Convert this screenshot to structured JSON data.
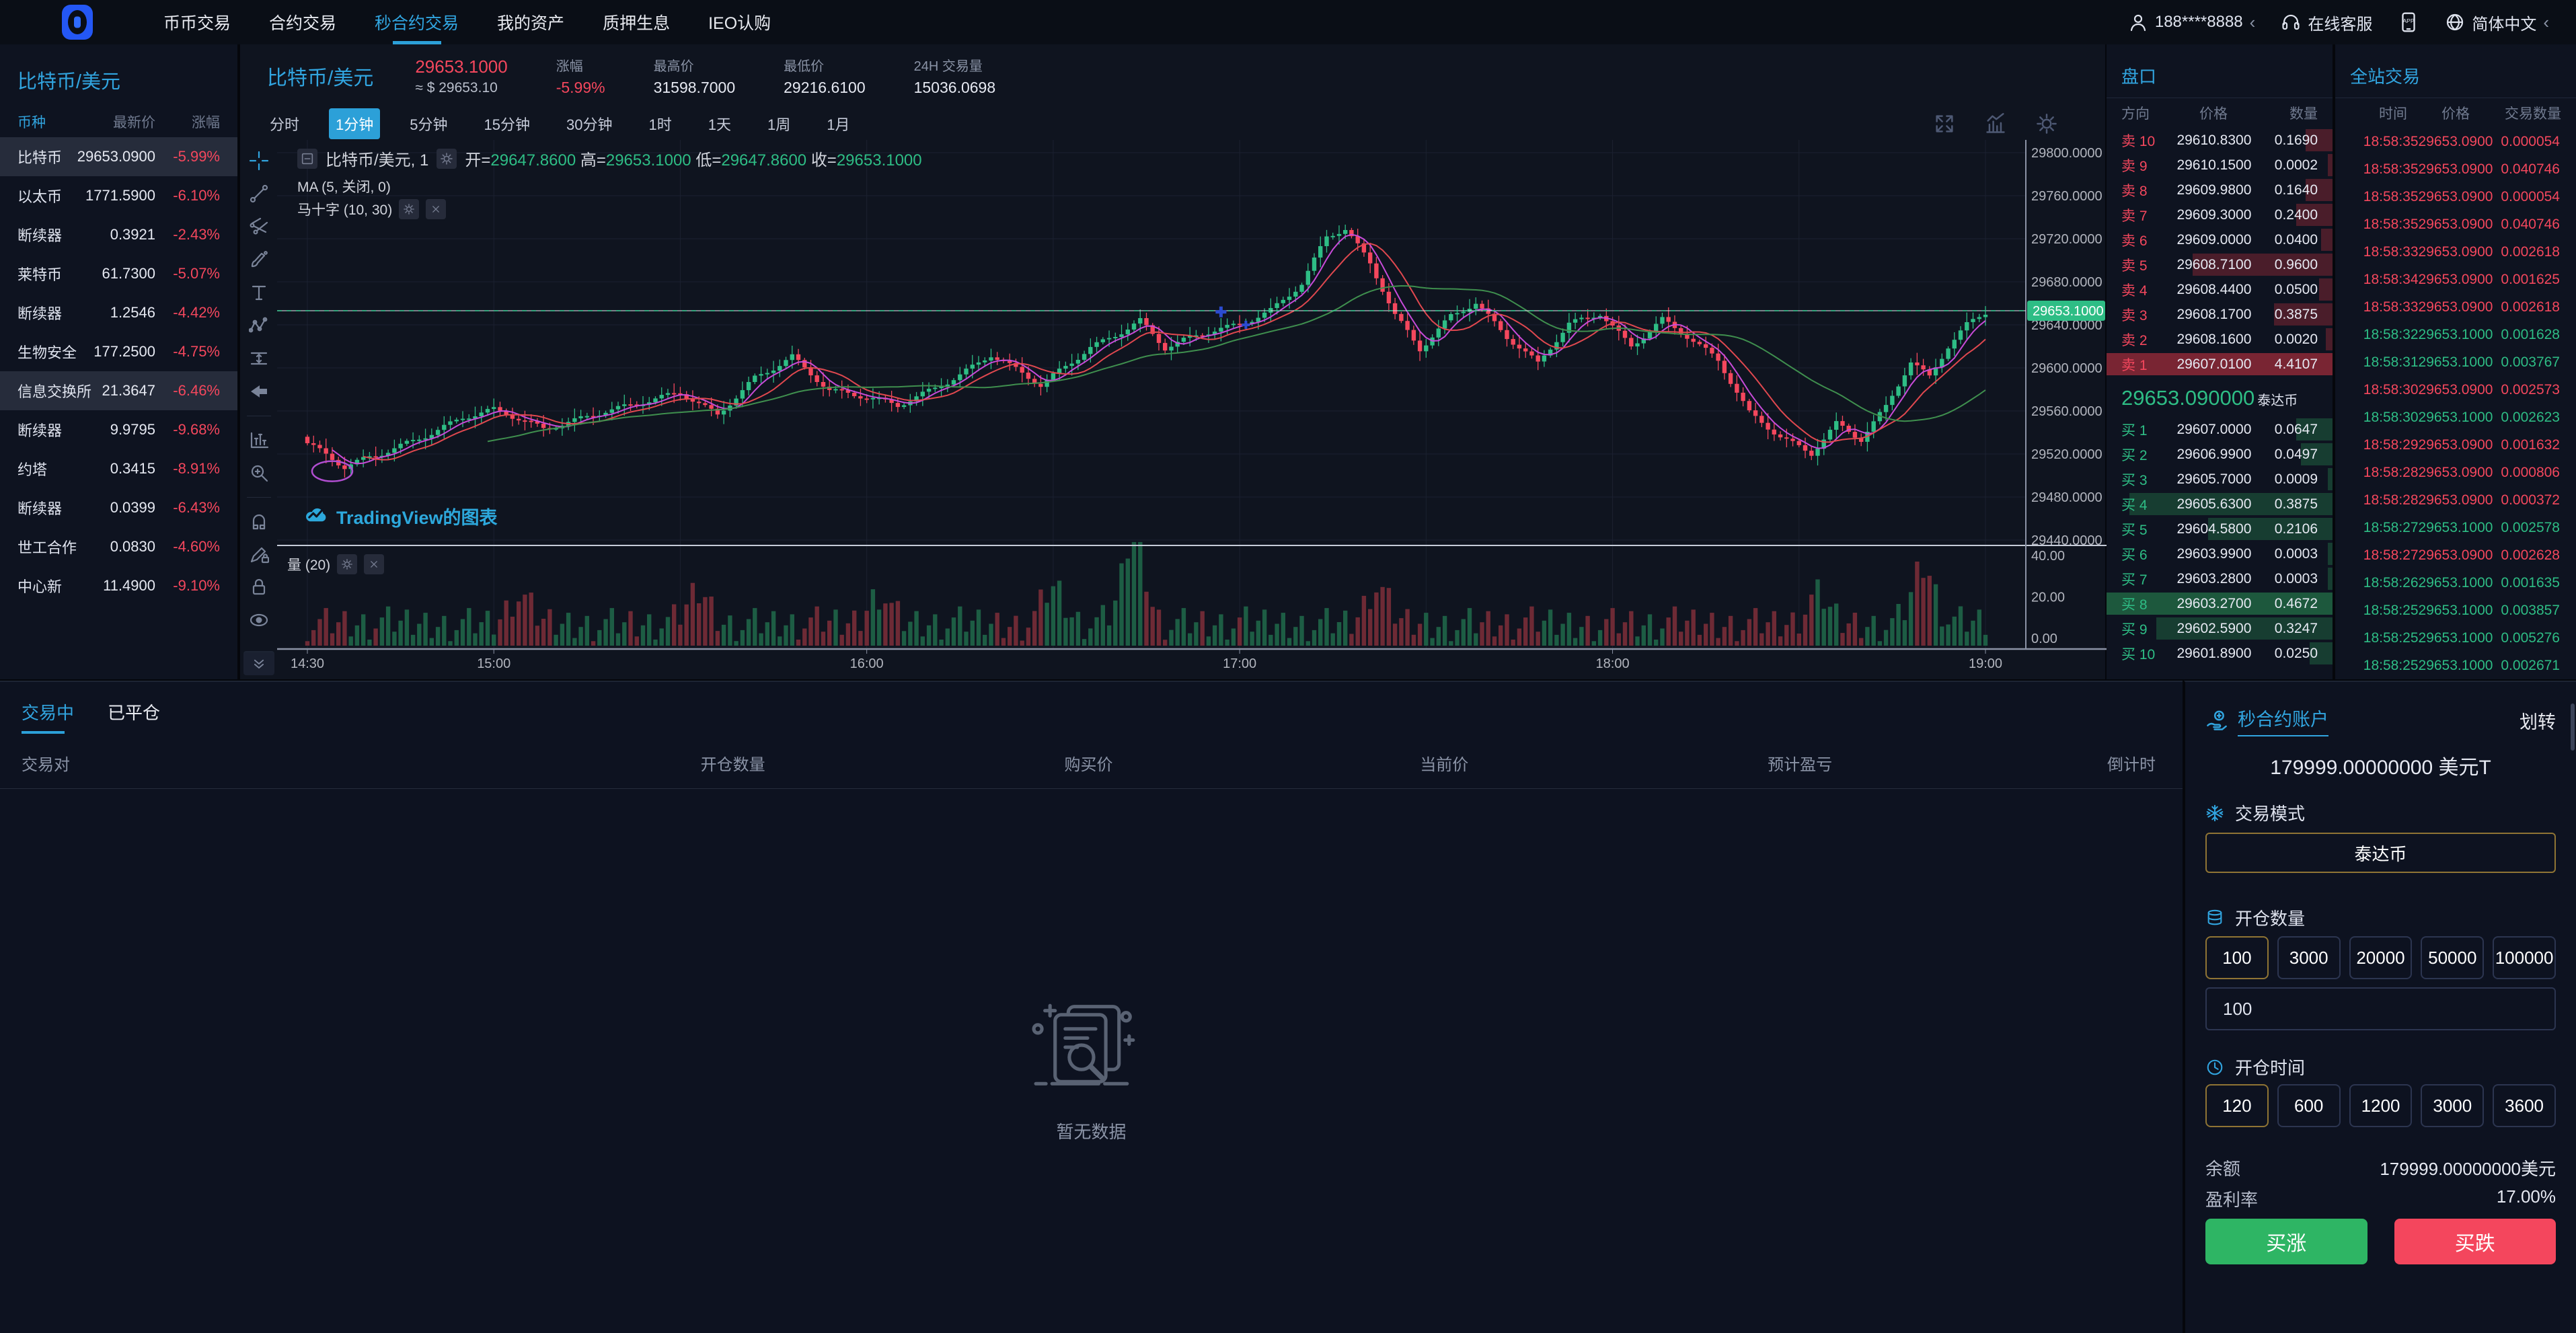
{
  "colors": {
    "accent": "#31a5e0",
    "red": "#f4475d",
    "green": "#2ebd85",
    "gold": "#8f7434",
    "vol_up": "#1d5d44",
    "vol_down": "#6e2a35"
  },
  "nav": {
    "items": [
      {
        "label": "币币交易",
        "active": false
      },
      {
        "label": "合约交易",
        "active": false
      },
      {
        "label": "秒合约交易",
        "active": true
      },
      {
        "label": "我的资产",
        "active": false
      },
      {
        "label": "质押生息",
        "active": false
      },
      {
        "label": "IEO认购",
        "active": false
      }
    ],
    "user_phone": "188****8888",
    "support_label": "在线客服",
    "app_label": "APP",
    "language_label": "简体中文"
  },
  "watchlist": {
    "title": "比特币/美元",
    "columns": [
      "币种",
      "最新价",
      "涨幅"
    ],
    "rows": [
      {
        "name": "比特币",
        "price": "29653.0900",
        "change": "-5.99%",
        "highlight": true
      },
      {
        "name": "以太币",
        "price": "1771.5900",
        "change": "-6.10%",
        "highlight": false
      },
      {
        "name": "断续器",
        "price": "0.3921",
        "change": "-2.43%",
        "highlight": false
      },
      {
        "name": "莱特币",
        "price": "61.7300",
        "change": "-5.07%",
        "highlight": false
      },
      {
        "name": "断续器",
        "price": "1.2546",
        "change": "-4.42%",
        "highlight": false
      },
      {
        "name": "生物安全",
        "price": "177.2500",
        "change": "-4.75%",
        "highlight": false
      },
      {
        "name": "信息交换所",
        "price": "21.3647",
        "change": "-6.46%",
        "highlight": true
      },
      {
        "name": "断续器",
        "price": "9.9795",
        "change": "-9.68%",
        "highlight": false
      },
      {
        "name": "约塔",
        "price": "0.3415",
        "change": "-8.91%",
        "highlight": false
      },
      {
        "name": "断续器",
        "price": "0.0399",
        "change": "-6.43%",
        "highlight": false
      },
      {
        "name": "世工合作",
        "price": "0.0830",
        "change": "-4.60%",
        "highlight": false
      },
      {
        "name": "中心新",
        "price": "11.4900",
        "change": "-9.10%",
        "highlight": false
      }
    ]
  },
  "market_header": {
    "pair": "比特币/美元",
    "last_price": "29653.1000",
    "usd_approx": "≈ $ 29653.10",
    "change_label": "涨幅",
    "change_value": "-5.99%",
    "high_label": "最高价",
    "high_value": "31598.7000",
    "low_label": "最低价",
    "low_value": "29216.6100",
    "volume_label": "24H 交易量",
    "volume_value": "15036.0698"
  },
  "chart": {
    "timeframes": [
      "分时",
      "1分钟",
      "5分钟",
      "15分钟",
      "30分钟",
      "1时",
      "1天",
      "1周",
      "1月"
    ],
    "active_timeframe": "1分钟",
    "toolbar": [
      "crosshair",
      "trendline",
      "pitchfork",
      "brush",
      "text",
      "pattern",
      "range",
      "arrow-left",
      "divider",
      "forecast",
      "zoom-in",
      "divider",
      "magnet",
      "pencil-lock",
      "lock",
      "eye"
    ],
    "top_tools": [
      "fullscreen",
      "indicators",
      "gear"
    ],
    "legend": {
      "title": "比特币/美元, 1",
      "open_label": "开",
      "open": "29647.8600",
      "high_label": "高",
      "high": "29653.1000",
      "low_label": "低",
      "low": "29647.8600",
      "close_label": "收",
      "close": "29653.1000",
      "ma": "MA (5, 关闭, 0)",
      "indicator": "马十字 (10, 30)"
    },
    "attribution": "TradingView的图表",
    "volume_legend": "量 (20)",
    "chart_data": {
      "type": "candlestick+volume",
      "pair": "比特币/美元",
      "interval": "1分钟",
      "x_ticks": [
        "14:30",
        "15:00",
        "16:00",
        "17:00",
        "18:00",
        "19:00"
      ],
      "x_tick_minutes": [
        0,
        30,
        90,
        150,
        210,
        270
      ],
      "minutes_total": 270,
      "y_ticks": [
        "29800.0000",
        "29760.0000",
        "29720.0000",
        "29680.0000",
        "29640.0000",
        "29600.0000",
        "29560.0000",
        "29520.0000",
        "29480.0000",
        "29440.0000"
      ],
      "y_tick_values": [
        29800,
        29760,
        29720,
        29680,
        29640,
        29600,
        29560,
        29520,
        29480,
        29440
      ],
      "volume_ticks": [
        "40.00",
        "20.00",
        "0.00"
      ],
      "current_price": 29653.1,
      "current_price_label": "29653.1000",
      "price_anchors": [
        [
          0,
          29530
        ],
        [
          6,
          29506
        ],
        [
          12,
          29520
        ],
        [
          25,
          29555
        ],
        [
          30,
          29560
        ],
        [
          38,
          29542
        ],
        [
          48,
          29562
        ],
        [
          60,
          29575
        ],
        [
          66,
          29555
        ],
        [
          72,
          29592
        ],
        [
          78,
          29612
        ],
        [
          84,
          29578
        ],
        [
          95,
          29565
        ],
        [
          105,
          29595
        ],
        [
          110,
          29612
        ],
        [
          118,
          29582
        ],
        [
          126,
          29620
        ],
        [
          134,
          29645
        ],
        [
          138,
          29618
        ],
        [
          144,
          29630
        ],
        [
          150,
          29640
        ],
        [
          155,
          29655
        ],
        [
          160,
          29680
        ],
        [
          164,
          29722
        ],
        [
          167,
          29728
        ],
        [
          171,
          29695
        ],
        [
          175,
          29648
        ],
        [
          179,
          29618
        ],
        [
          184,
          29650
        ],
        [
          188,
          29662
        ],
        [
          193,
          29628
        ],
        [
          198,
          29602
        ],
        [
          203,
          29640
        ],
        [
          208,
          29652
        ],
        [
          213,
          29622
        ],
        [
          218,
          29645
        ],
        [
          222,
          29628
        ],
        [
          227,
          29605
        ],
        [
          232,
          29558
        ],
        [
          237,
          29538
        ],
        [
          242,
          29522
        ],
        [
          246,
          29548
        ],
        [
          250,
          29532
        ],
        [
          254,
          29562
        ],
        [
          258,
          29605
        ],
        [
          261,
          29592
        ],
        [
          264,
          29622
        ],
        [
          267,
          29642
        ],
        [
          270,
          29653
        ]
      ],
      "volume_spikes": [
        [
          34,
          12
        ],
        [
          63,
          14
        ],
        [
          92,
          14
        ],
        [
          120,
          16
        ],
        [
          133,
          40
        ],
        [
          172,
          16
        ],
        [
          243,
          12
        ],
        [
          260,
          26
        ]
      ],
      "ma_periods": [
        5,
        10,
        30
      ]
    }
  },
  "orderbook": {
    "title": "盘口",
    "columns": [
      "方向",
      "价格",
      "数量"
    ],
    "asks": [
      {
        "label": "卖 10",
        "price": "29610.8300",
        "qty": "0.1690",
        "depth": 12
      },
      {
        "label": "卖 9",
        "price": "29610.1500",
        "qty": "0.0002",
        "depth": 2
      },
      {
        "label": "卖 8",
        "price": "29609.9800",
        "qty": "0.1640",
        "depth": 12
      },
      {
        "label": "卖 7",
        "price": "29609.3000",
        "qty": "0.2400",
        "depth": 16
      },
      {
        "label": "卖 6",
        "price": "29609.0000",
        "qty": "0.0400",
        "depth": 5
      },
      {
        "label": "卖 5",
        "price": "29608.7100",
        "qty": "0.9600",
        "depth": 62
      },
      {
        "label": "卖 4",
        "price": "29608.4400",
        "qty": "0.0500",
        "depth": 6
      },
      {
        "label": "卖 3",
        "price": "29608.1700",
        "qty": "0.3875",
        "depth": 26
      },
      {
        "label": "卖 2",
        "price": "29608.1600",
        "qty": "0.0020",
        "depth": 3
      },
      {
        "label": "卖 1",
        "price": "29607.0100",
        "qty": "4.4107",
        "depth": 100
      }
    ],
    "mid_price": "29653.090000",
    "mid_unit": "泰达币",
    "bids": [
      {
        "label": "买 1",
        "price": "29607.0000",
        "qty": "0.0647",
        "depth": 16
      },
      {
        "label": "买 2",
        "price": "29606.9900",
        "qty": "0.0497",
        "depth": 14
      },
      {
        "label": "买 3",
        "price": "29605.7000",
        "qty": "0.0009",
        "depth": 2
      },
      {
        "label": "买 4",
        "price": "29605.6300",
        "qty": "0.3875",
        "depth": 90
      },
      {
        "label": "买 5",
        "price": "29604.5800",
        "qty": "0.2106",
        "depth": 55
      },
      {
        "label": "买 6",
        "price": "29603.9900",
        "qty": "0.0003",
        "depth": 2
      },
      {
        "label": "买 7",
        "price": "29603.2800",
        "qty": "0.0003",
        "depth": 2
      },
      {
        "label": "买 8",
        "price": "29603.2700",
        "qty": "0.4672",
        "depth": 100
      },
      {
        "label": "买 9",
        "price": "29602.5900",
        "qty": "0.3247",
        "depth": 78
      },
      {
        "label": "买 10",
        "price": "29601.8900",
        "qty": "0.0250",
        "depth": 10
      }
    ]
  },
  "trades": {
    "title": "全站交易",
    "columns": [
      "时间",
      "价格",
      "交易数量"
    ],
    "rows": [
      {
        "time": "18:58:35",
        "price": "29653.0900",
        "qty": "0.000054",
        "side": "sell"
      },
      {
        "time": "18:58:35",
        "price": "29653.0900",
        "qty": "0.040746",
        "side": "sell"
      },
      {
        "time": "18:58:35",
        "price": "29653.0900",
        "qty": "0.000054",
        "side": "sell"
      },
      {
        "time": "18:58:35",
        "price": "29653.0900",
        "qty": "0.040746",
        "side": "sell"
      },
      {
        "time": "18:58:33",
        "price": "29653.0900",
        "qty": "0.002618",
        "side": "sell"
      },
      {
        "time": "18:58:34",
        "price": "29653.0900",
        "qty": "0.001625",
        "side": "sell"
      },
      {
        "time": "18:58:33",
        "price": "29653.0900",
        "qty": "0.002618",
        "side": "sell"
      },
      {
        "time": "18:58:32",
        "price": "29653.1000",
        "qty": "0.001628",
        "side": "buy"
      },
      {
        "time": "18:58:31",
        "price": "29653.1000",
        "qty": "0.003767",
        "side": "buy"
      },
      {
        "time": "18:58:30",
        "price": "29653.0900",
        "qty": "0.002573",
        "side": "sell"
      },
      {
        "time": "18:58:30",
        "price": "29653.1000",
        "qty": "0.002623",
        "side": "buy"
      },
      {
        "time": "18:58:29",
        "price": "29653.0900",
        "qty": "0.001632",
        "side": "sell"
      },
      {
        "time": "18:58:28",
        "price": "29653.0900",
        "qty": "0.000806",
        "side": "sell"
      },
      {
        "time": "18:58:28",
        "price": "29653.0900",
        "qty": "0.000372",
        "side": "sell"
      },
      {
        "time": "18:58:27",
        "price": "29653.1000",
        "qty": "0.002578",
        "side": "buy"
      },
      {
        "time": "18:58:27",
        "price": "29653.0900",
        "qty": "0.002628",
        "side": "sell"
      },
      {
        "time": "18:58:26",
        "price": "29653.1000",
        "qty": "0.001635",
        "side": "buy"
      },
      {
        "time": "18:58:25",
        "price": "29653.1000",
        "qty": "0.003857",
        "side": "buy"
      },
      {
        "time": "18:58:25",
        "price": "29653.1000",
        "qty": "0.005276",
        "side": "buy"
      },
      {
        "time": "18:58:25",
        "price": "29653.1000",
        "qty": "0.002671",
        "side": "buy"
      }
    ]
  },
  "positions": {
    "tabs": [
      {
        "label": "交易中",
        "active": true
      },
      {
        "label": "已平仓",
        "active": false
      }
    ],
    "columns": [
      "交易对",
      "开仓数量",
      "购买价",
      "当前价",
      "预计盈亏",
      "倒计时"
    ],
    "empty_text": "暂无数据"
  },
  "account": {
    "title": "秒合约账户",
    "transfer_label": "划转",
    "balance_display": "179999.00000000 美元T",
    "mode_label": "交易模式",
    "mode_value": "泰达币",
    "amount_label": "开仓数量",
    "amount_options": [
      "100",
      "3000",
      "20000",
      "50000",
      "100000"
    ],
    "amount_active": "100",
    "amount_input": "100",
    "duration_label": "开仓时间",
    "duration_options": [
      "120",
      "600",
      "1200",
      "3000",
      "3600"
    ],
    "duration_active": "120",
    "balance_label": "余额",
    "balance_value": "179999.00000000美元",
    "profit_label": "盈利率",
    "profit_value": "17.00%",
    "buy_up_label": "买涨",
    "buy_down_label": "买跌"
  }
}
